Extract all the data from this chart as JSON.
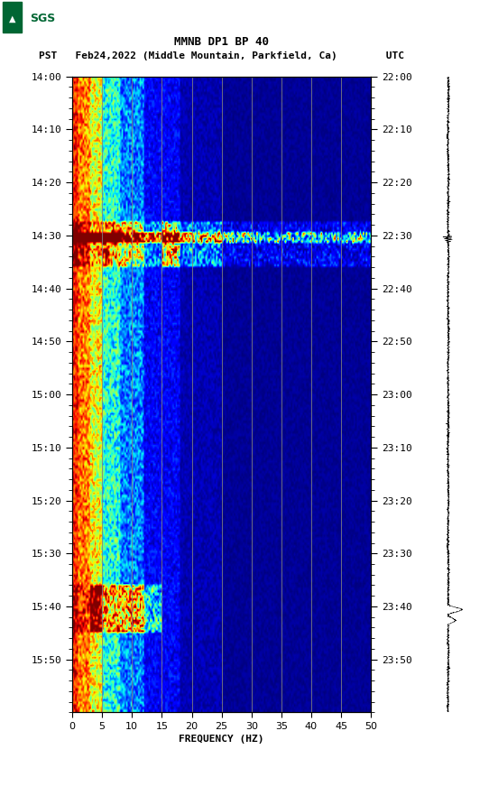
{
  "title_line1": "MMNB DP1 BP 40",
  "title_line2": "PST   Feb24,2022 (Middle Mountain, Parkfield, Ca)        UTC",
  "left_times": [
    "14:00",
    "14:10",
    "14:20",
    "14:30",
    "14:40",
    "14:50",
    "15:00",
    "15:10",
    "15:20",
    "15:30",
    "15:40",
    "15:50"
  ],
  "right_times": [
    "22:00",
    "22:10",
    "22:20",
    "22:30",
    "22:40",
    "22:50",
    "23:00",
    "23:10",
    "23:20",
    "23:30",
    "23:40",
    "23:50"
  ],
  "freq_min": 0,
  "freq_max": 50,
  "freq_ticks": [
    0,
    5,
    10,
    15,
    20,
    25,
    30,
    35,
    40,
    45,
    50
  ],
  "freq_label": "FREQUENCY (HZ)",
  "background_color": "#ffffff",
  "colormap": "jet",
  "usgs_color": "#006633",
  "vline_freqs": [
    5,
    10,
    15,
    20,
    25,
    30,
    35,
    40,
    45
  ],
  "vline_color": "#808080",
  "n_time": 240,
  "n_freq": 200
}
